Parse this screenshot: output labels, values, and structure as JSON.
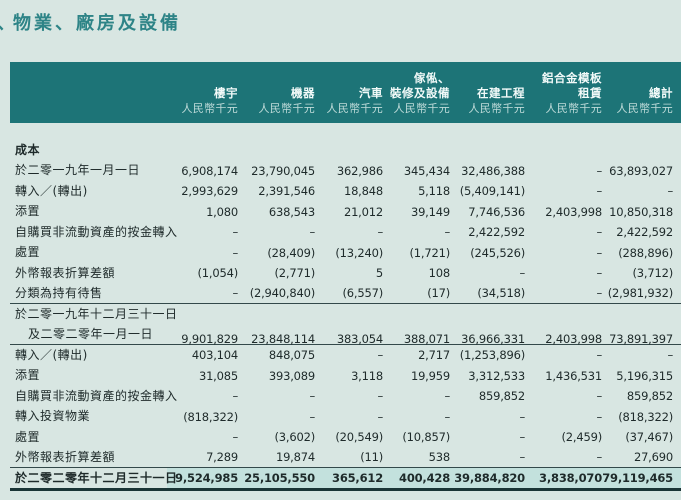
{
  "title": {
    "text": "物業、廠房及設備",
    "cut_glyph": "丶"
  },
  "colors": {
    "page_bg": "#d8e6e2",
    "header_bg": "#1d7477",
    "title_text": "#2e8487",
    "highlight_bg": "#c3e1dd"
  },
  "table": {
    "columns": [
      {
        "name": "樓宇",
        "unit": "人民幣千元"
      },
      {
        "name": "機器",
        "unit": "人民幣千元"
      },
      {
        "name": "汽車",
        "unit": "人民幣千元"
      },
      {
        "name": "傢俬、\n裝修及設備",
        "unit": "人民幣千元"
      },
      {
        "name": "在建工程",
        "unit": "人民幣千元"
      },
      {
        "name": "鋁合金模板\n租賃",
        "unit": "人民幣千元"
      },
      {
        "name": "總計",
        "unit": "人民幣千元"
      }
    ],
    "rows": [
      {
        "type": "section",
        "label": "成本"
      },
      {
        "type": "data",
        "label": "於二零一九年一月一日",
        "values": [
          "6,908,174",
          "23,790,045",
          "362,986",
          "345,434",
          "32,486,388",
          "–",
          "63,893,027"
        ]
      },
      {
        "type": "data",
        "label": "轉入／(轉出)",
        "values": [
          "2,993,629",
          "2,391,546",
          "18,848",
          "5,118",
          "(5,409,141)",
          "–",
          "–"
        ]
      },
      {
        "type": "data",
        "label": "添置",
        "values": [
          "1,080",
          "638,543",
          "21,012",
          "39,149",
          "7,746,536",
          "2,403,998",
          "10,850,318"
        ]
      },
      {
        "type": "data",
        "label": "自購買非流動資產的按金轉入",
        "values": [
          "–",
          "–",
          "–",
          "–",
          "2,422,592",
          "–",
          "2,422,592"
        ]
      },
      {
        "type": "data",
        "label": "處置",
        "values": [
          "–",
          "(28,409)",
          "(13,240)",
          "(1,721)",
          "(245,526)",
          "–",
          "(288,896)"
        ]
      },
      {
        "type": "data",
        "label": "外幣報表折算差額",
        "values": [
          "(1,054)",
          "(2,771)",
          "5",
          "108",
          "–",
          "–",
          "(3,712)"
        ]
      },
      {
        "type": "data",
        "label": "分類為持有待售",
        "divider": "thin",
        "values": [
          "–",
          "(2,940,840)",
          "(6,557)",
          "(17)",
          "(34,518)",
          "–",
          "(2,981,932)"
        ]
      },
      {
        "type": "subtotal",
        "divider": "thin",
        "label_lines": [
          "於二零一九年十二月三十一日",
          "及二零二零年一月一日"
        ],
        "values": [
          "9,901,829",
          "23,848,114",
          "383,054",
          "388,071",
          "36,966,331",
          "2,403,998",
          "73,891,397"
        ]
      },
      {
        "type": "data",
        "label": "轉入／(轉出)",
        "values": [
          "403,104",
          "848,075",
          "–",
          "2,717",
          "(1,253,896)",
          "–",
          "–"
        ]
      },
      {
        "type": "data",
        "label": "添置",
        "values": [
          "31,085",
          "393,089",
          "3,118",
          "19,959",
          "3,312,533",
          "1,436,531",
          "5,196,315"
        ]
      },
      {
        "type": "data",
        "label": "自購買非流動資產的按金轉入",
        "values": [
          "–",
          "–",
          "–",
          "–",
          "859,852",
          "–",
          "859,852"
        ]
      },
      {
        "type": "data",
        "label": "轉入投資物業",
        "values": [
          "(818,322)",
          "–",
          "–",
          "–",
          "–",
          "–",
          "(818,322)"
        ]
      },
      {
        "type": "data",
        "label": "處置",
        "values": [
          "–",
          "(3,602)",
          "(20,549)",
          "(10,857)",
          "–",
          "(2,459)",
          "(37,467)"
        ]
      },
      {
        "type": "data",
        "label": "外幣報表折算差額",
        "divider": "thin",
        "values": [
          "7,289",
          "19,874",
          "(11)",
          "538",
          "–",
          "–",
          "27,690"
        ]
      },
      {
        "type": "total",
        "label": "於二零二零年十二月三十一日",
        "divider": "thick",
        "values": [
          "9,524,985",
          "25,105,550",
          "365,612",
          "400,428",
          "39,884,820",
          "3,838,070",
          "79,119,465"
        ]
      }
    ]
  }
}
